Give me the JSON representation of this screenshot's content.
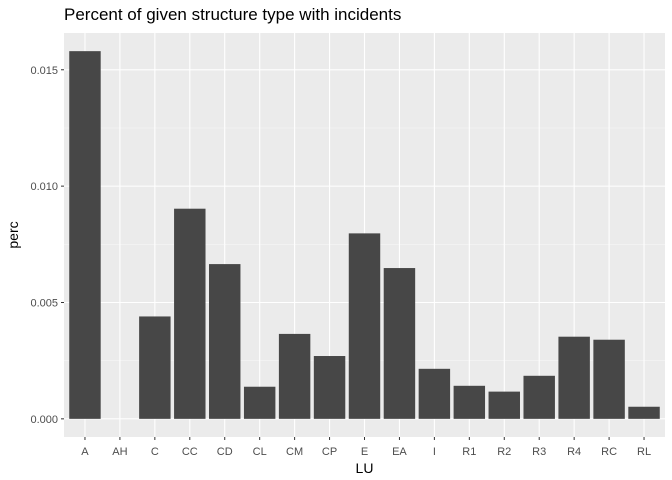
{
  "chart_data": {
    "type": "bar",
    "title": "Percent of given structure type with incidents",
    "xlabel": "LU",
    "ylabel": "perc",
    "categories": [
      "A",
      "AH",
      "C",
      "CC",
      "CD",
      "CL",
      "CM",
      "CP",
      "E",
      "EA",
      "I",
      "R1",
      "R2",
      "R3",
      "R4",
      "RC",
      "RL"
    ],
    "values": [
      0.0158,
      0.0,
      0.0044,
      0.00903,
      0.00665,
      0.00138,
      0.00365,
      0.0027,
      0.00797,
      0.00648,
      0.00215,
      0.00142,
      0.00117,
      0.00185,
      0.00353,
      0.0034,
      0.00052
    ],
    "yticks": [
      0.0,
      0.005,
      0.01,
      0.015
    ],
    "ytick_labels": [
      "0.000",
      "0.005",
      "0.010",
      "0.015"
    ],
    "ylim": [
      -0.00078,
      0.01658
    ],
    "grid": true,
    "legend": "none",
    "colors": {
      "bar": "#474747",
      "panel": "#ebebeb",
      "grid_major": "#ffffff",
      "grid_minor": "#f5f5f5"
    }
  }
}
